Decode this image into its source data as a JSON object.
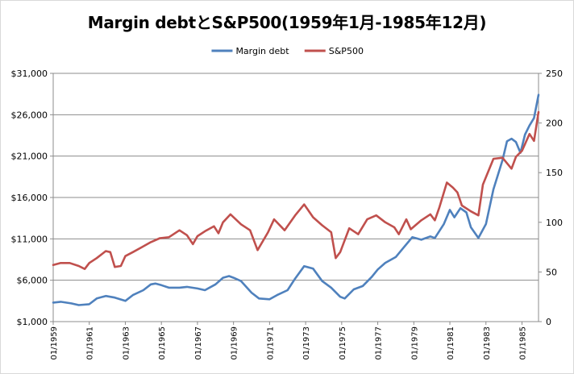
{
  "chart_data": {
    "type": "line",
    "title": "Margin debtとS&P500(1959年1月-1985年12月)",
    "x_tick_labels": [
      "01/1959",
      "01/1961",
      "01/1963",
      "01/1965",
      "01/1967",
      "01/1969",
      "01/1971",
      "01/1973",
      "01/1975",
      "01/1977",
      "01/1979",
      "01/1981",
      "01/1983",
      "01/1985"
    ],
    "x_range": [
      "1959-01",
      "1985-12"
    ],
    "left_axis": {
      "ylim": [
        1000,
        31000
      ],
      "ticks": [
        "$1,000",
        "$6,000",
        "$11,000",
        "$16,000",
        "$21,000",
        "$26,000",
        "$31,000"
      ]
    },
    "right_axis": {
      "ylim": [
        0,
        250
      ],
      "ticks": [
        "0",
        "50",
        "100",
        "150",
        "200",
        "250"
      ]
    },
    "grid": "horizontal",
    "legend_position": "top-center",
    "series": [
      {
        "name": "Margin debt",
        "axis": "left",
        "color": "#4f81bd",
        "points": [
          [
            "1959-01",
            3300
          ],
          [
            "1959-06",
            3400
          ],
          [
            "1960-01",
            3200
          ],
          [
            "1960-06",
            3000
          ],
          [
            "1961-01",
            3100
          ],
          [
            "1961-06",
            3800
          ],
          [
            "1961-12",
            4100
          ],
          [
            "1962-06",
            3900
          ],
          [
            "1963-01",
            3500
          ],
          [
            "1963-06",
            4200
          ],
          [
            "1964-01",
            4800
          ],
          [
            "1964-06",
            5500
          ],
          [
            "1964-09",
            5600
          ],
          [
            "1965-01",
            5400
          ],
          [
            "1965-06",
            5100
          ],
          [
            "1966-01",
            5100
          ],
          [
            "1966-06",
            5200
          ],
          [
            "1967-01",
            5000
          ],
          [
            "1967-06",
            4800
          ],
          [
            "1968-01",
            5500
          ],
          [
            "1968-06",
            6300
          ],
          [
            "1968-10",
            6500
          ],
          [
            "1969-01",
            6300
          ],
          [
            "1969-06",
            5900
          ],
          [
            "1970-01",
            4500
          ],
          [
            "1970-06",
            3800
          ],
          [
            "1971-01",
            3700
          ],
          [
            "1971-06",
            4200
          ],
          [
            "1972-01",
            4800
          ],
          [
            "1972-06",
            6200
          ],
          [
            "1972-12",
            7700
          ],
          [
            "1973-06",
            7400
          ],
          [
            "1973-12",
            5900
          ],
          [
            "1974-06",
            5100
          ],
          [
            "1974-12",
            4000
          ],
          [
            "1975-03",
            3800
          ],
          [
            "1975-09",
            4900
          ],
          [
            "1976-03",
            5300
          ],
          [
            "1976-09",
            6400
          ],
          [
            "1977-01",
            7300
          ],
          [
            "1977-06",
            8100
          ],
          [
            "1978-01",
            8800
          ],
          [
            "1978-06",
            9900
          ],
          [
            "1978-12",
            11200
          ],
          [
            "1979-06",
            10900
          ],
          [
            "1979-12",
            11300
          ],
          [
            "1980-03",
            11100
          ],
          [
            "1980-09",
            12800
          ],
          [
            "1981-01",
            14500
          ],
          [
            "1981-04",
            13600
          ],
          [
            "1981-08",
            14700
          ],
          [
            "1981-12",
            14200
          ],
          [
            "1982-03",
            12400
          ],
          [
            "1982-08",
            11100
          ],
          [
            "1983-01",
            12800
          ],
          [
            "1983-06",
            17000
          ],
          [
            "1983-12",
            20500
          ],
          [
            "1984-03",
            22800
          ],
          [
            "1984-06",
            23100
          ],
          [
            "1984-09",
            22700
          ],
          [
            "1984-12",
            21400
          ],
          [
            "1985-03",
            23600
          ],
          [
            "1985-06",
            24700
          ],
          [
            "1985-09",
            25600
          ],
          [
            "1985-12",
            28400
          ]
        ]
      },
      {
        "name": "S&P500",
        "axis": "right",
        "color": "#c0504d",
        "points": [
          [
            "1959-01",
            57
          ],
          [
            "1959-06",
            59
          ],
          [
            "1959-12",
            59
          ],
          [
            "1960-06",
            56
          ],
          [
            "1960-10",
            53
          ],
          [
            "1961-01",
            59
          ],
          [
            "1961-06",
            64
          ],
          [
            "1961-12",
            71
          ],
          [
            "1962-03",
            70
          ],
          [
            "1962-06",
            55
          ],
          [
            "1962-10",
            56
          ],
          [
            "1963-01",
            66
          ],
          [
            "1963-06",
            70
          ],
          [
            "1963-12",
            75
          ],
          [
            "1964-06",
            80
          ],
          [
            "1964-12",
            84
          ],
          [
            "1965-06",
            85
          ],
          [
            "1966-01",
            92
          ],
          [
            "1966-06",
            87
          ],
          [
            "1966-10",
            78
          ],
          [
            "1967-01",
            86
          ],
          [
            "1967-06",
            91
          ],
          [
            "1967-12",
            96
          ],
          [
            "1968-03",
            89
          ],
          [
            "1968-06",
            100
          ],
          [
            "1968-11",
            108
          ],
          [
            "1969-06",
            98
          ],
          [
            "1969-12",
            92
          ],
          [
            "1970-05",
            72
          ],
          [
            "1970-12",
            90
          ],
          [
            "1971-04",
            103
          ],
          [
            "1971-11",
            92
          ],
          [
            "1972-06",
            107
          ],
          [
            "1972-12",
            118
          ],
          [
            "1973-06",
            105
          ],
          [
            "1973-12",
            97
          ],
          [
            "1974-06",
            90
          ],
          [
            "1974-09",
            64
          ],
          [
            "1974-12",
            70
          ],
          [
            "1975-06",
            94
          ],
          [
            "1975-12",
            88
          ],
          [
            "1976-06",
            103
          ],
          [
            "1976-12",
            107
          ],
          [
            "1977-06",
            100
          ],
          [
            "1977-12",
            95
          ],
          [
            "1978-03",
            88
          ],
          [
            "1978-08",
            103
          ],
          [
            "1978-11",
            93
          ],
          [
            "1979-06",
            102
          ],
          [
            "1979-12",
            108
          ],
          [
            "1980-03",
            102
          ],
          [
            "1980-06",
            115
          ],
          [
            "1980-11",
            140
          ],
          [
            "1981-03",
            135
          ],
          [
            "1981-06",
            130
          ],
          [
            "1981-09",
            117
          ],
          [
            "1982-03",
            111
          ],
          [
            "1982-08",
            107
          ],
          [
            "1982-11",
            138
          ],
          [
            "1983-06",
            164
          ],
          [
            "1983-12",
            165
          ],
          [
            "1984-06",
            154
          ],
          [
            "1984-09",
            166
          ],
          [
            "1985-01",
            172
          ],
          [
            "1985-06",
            189
          ],
          [
            "1985-09",
            182
          ],
          [
            "1985-12",
            211
          ]
        ]
      }
    ]
  }
}
